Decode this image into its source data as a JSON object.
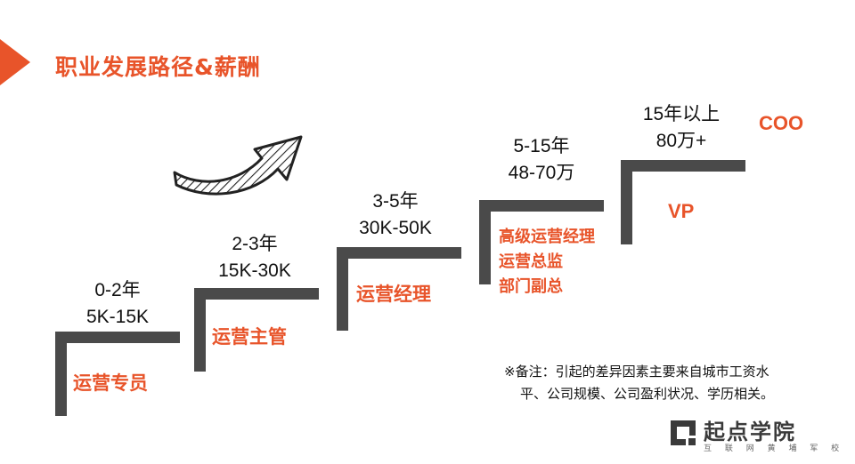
{
  "title": "职业发展路径&薪酬",
  "stages": [
    {
      "years": "0-2年",
      "salary": "5K-15K",
      "roles": [
        "运营专员"
      ]
    },
    {
      "years": "2-3年",
      "salary": "15K-30K",
      "roles": [
        "运营主管"
      ]
    },
    {
      "years": "3-5年",
      "salary": "30K-50K",
      "roles": [
        "运营经理"
      ]
    },
    {
      "years": "5-15年",
      "salary": "48-70万",
      "roles": [
        "高级运营经理",
        "运营总监",
        "部门副总"
      ]
    },
    {
      "years": "15年以上",
      "salary": "80万+",
      "roles": [
        "VP"
      ]
    }
  ],
  "top_role": "COO",
  "note": {
    "line1": "※备注：引起的差异因素主要来自城市工资水",
    "line2": "平、公司规模、公司盈利状况、学历相关。"
  },
  "brand": {
    "name": "起点学院",
    "tagline": "互 联 网 黄 埔 军 校"
  },
  "colors": {
    "accent": "#e8542a",
    "step": "#4a4a4a"
  },
  "icons": {
    "accent": "orange-triangle-icon",
    "arrow": "curved-arrow-icon",
    "brand": "brand-logo-icon"
  }
}
